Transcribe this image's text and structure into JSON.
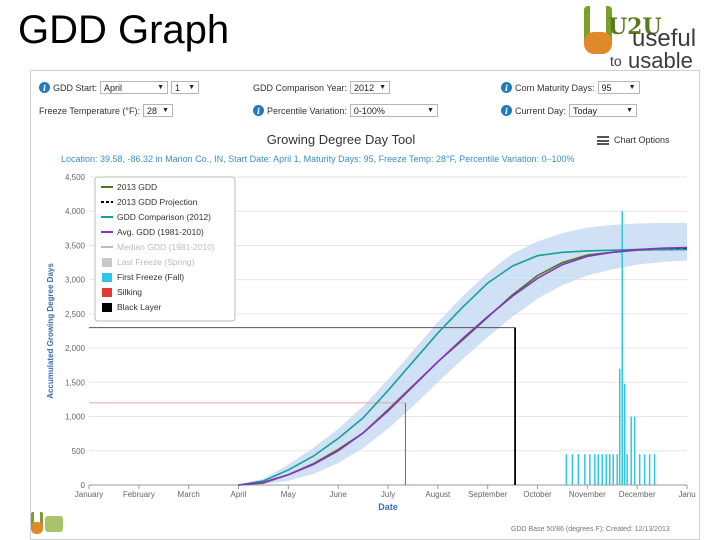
{
  "slide": {
    "title": "GDD Graph"
  },
  "logo": {
    "useful": "useful",
    "to": "to",
    "usable": "usable",
    "mark": "U2U"
  },
  "controls": {
    "gdd_start_label": "GDD Start:",
    "gdd_start_month": "April",
    "gdd_start_day": "1",
    "comparison_label": "GDD Comparison Year:",
    "comparison_value": "2012",
    "maturity_label": "Corn Maturity Days:",
    "maturity_value": "95",
    "freeze_label": "Freeze Temperature (°F):",
    "freeze_value": "28",
    "percentile_label": "Percentile Variation:",
    "percentile_value": "0-100%",
    "current_day_label": "Current Day:",
    "current_day_value": "Today"
  },
  "chart_header": {
    "title": "Growing Degree Day Tool",
    "options_label": "Chart Options",
    "subtitle": "Location: 39.58, -86.32 in Marion Co., IN, Start Date: April 1, Maturity Days: 95, Freeze Temp: 28°F, Percentile Variation: 0–100%"
  },
  "footer": "GDD Base 50/86 (degrees F); Created: 12/13/2013",
  "colors": {
    "gdd_2013": "#4a7a1e",
    "projection": "#000000",
    "comparison": "#14a19a",
    "average": "#8b2fc9",
    "median": "#bbbbbb",
    "last_freeze": "#c8c8c8",
    "first_freeze": "#2ec6e6",
    "silking": "#e53935",
    "black_layer": "#000000",
    "band": "#c5daf3",
    "axis_label": "#3b6fb6"
  },
  "chart_data": {
    "type": "line",
    "xlabel": "Date",
    "ylabel": "Accumulated Growing Degree Days",
    "ylim": [
      0,
      4500
    ],
    "yticks": [
      0,
      500,
      1000,
      1500,
      2000,
      2500,
      3000,
      3500,
      4000,
      4500
    ],
    "ytick_labels": [
      "0",
      "500",
      "1,000",
      "1,500",
      "2,000",
      "2,500",
      "3,000",
      "3,500",
      "4,000",
      "4,500"
    ],
    "xlim": [
      0,
      12
    ],
    "months": [
      "January",
      "February",
      "March",
      "April",
      "May",
      "June",
      "July",
      "August",
      "September",
      "October",
      "November",
      "December",
      "Janu"
    ],
    "legend": [
      {
        "key": "gdd_2013",
        "label": "2013 GDD",
        "kind": "line"
      },
      {
        "key": "projection",
        "label": "2013 GDD Projection",
        "kind": "dash"
      },
      {
        "key": "comparison",
        "label": "GDD Comparison (2012)",
        "kind": "line"
      },
      {
        "key": "average",
        "label": "Avg. GDD (1981-2010)",
        "kind": "line"
      },
      {
        "key": "median",
        "label": "Median GDD (1981-2010)",
        "kind": "line"
      },
      {
        "key": "last_freeze",
        "label": "Last Freeze (Spring)",
        "kind": "box"
      },
      {
        "key": "first_freeze",
        "label": "First Freeze (Fall)",
        "kind": "box"
      },
      {
        "key": "silking",
        "label": "Silking",
        "kind": "box"
      },
      {
        "key": "black_layer",
        "label": "Black Layer",
        "kind": "box"
      }
    ],
    "series": [
      {
        "key": "gdd_2013",
        "x": [
          3,
          3.5,
          4,
          4.5,
          5,
          5.5,
          6,
          6.5,
          7,
          7.5,
          8,
          8.5,
          9,
          9.5,
          10,
          10.5,
          11,
          11.5,
          12
        ],
        "y": [
          0,
          30,
          150,
          310,
          520,
          760,
          1100,
          1450,
          1800,
          2120,
          2450,
          2780,
          3060,
          3250,
          3360,
          3400,
          3430,
          3440,
          3450
        ]
      },
      {
        "key": "projection",
        "x": [
          11.5,
          11.8,
          12
        ],
        "y": [
          3440,
          3445,
          3450
        ]
      },
      {
        "key": "comparison",
        "x": [
          3,
          3.5,
          4,
          4.5,
          5,
          5.5,
          6,
          6.5,
          7,
          7.5,
          8,
          8.5,
          9,
          9.5,
          10,
          10.5,
          11,
          11.5,
          12
        ],
        "y": [
          0,
          60,
          220,
          420,
          680,
          980,
          1380,
          1800,
          2220,
          2600,
          2950,
          3200,
          3350,
          3400,
          3420,
          3430,
          3440,
          3440,
          3440
        ]
      },
      {
        "key": "average",
        "x": [
          3,
          3.5,
          4,
          4.5,
          5,
          5.5,
          6,
          6.5,
          7,
          7.5,
          8,
          8.5,
          9,
          9.5,
          10,
          10.5,
          11,
          11.5,
          12
        ],
        "y": [
          0,
          40,
          150,
          300,
          500,
          760,
          1080,
          1440,
          1800,
          2140,
          2460,
          2760,
          3020,
          3220,
          3340,
          3400,
          3440,
          3460,
          3470
        ]
      }
    ],
    "band": {
      "x": [
        3,
        3.5,
        4,
        4.5,
        5,
        5.5,
        6,
        6.5,
        7,
        7.5,
        8,
        8.5,
        9,
        9.5,
        10,
        10.5,
        11,
        11.5,
        12
      ],
      "lower": [
        0,
        10,
        60,
        160,
        320,
        540,
        820,
        1150,
        1500,
        1840,
        2160,
        2460,
        2720,
        2920,
        3060,
        3150,
        3220,
        3260,
        3280
      ],
      "upper": [
        0,
        90,
        300,
        540,
        820,
        1150,
        1540,
        1960,
        2380,
        2760,
        3100,
        3380,
        3560,
        3680,
        3760,
        3800,
        3820,
        3830,
        3830
      ]
    },
    "markers": [
      {
        "key": "silking",
        "x": 6.35,
        "y": 1200
      },
      {
        "key": "black_layer",
        "x": 8.55,
        "y": 2300
      }
    ],
    "first_freeze_bars": [
      {
        "x": 9.58,
        "y": 450
      },
      {
        "x": 9.7,
        "y": 450
      },
      {
        "x": 9.82,
        "y": 450
      },
      {
        "x": 9.95,
        "y": 450
      },
      {
        "x": 10.05,
        "y": 450
      },
      {
        "x": 10.15,
        "y": 450
      },
      {
        "x": 10.22,
        "y": 450
      },
      {
        "x": 10.3,
        "y": 450
      },
      {
        "x": 10.38,
        "y": 450
      },
      {
        "x": 10.45,
        "y": 450
      },
      {
        "x": 10.52,
        "y": 450
      },
      {
        "x": 10.6,
        "y": 450
      },
      {
        "x": 10.65,
        "y": 1700
      },
      {
        "x": 10.7,
        "y": 4000
      },
      {
        "x": 10.75,
        "y": 1480
      },
      {
        "x": 10.8,
        "y": 450
      },
      {
        "x": 10.88,
        "y": 1000
      },
      {
        "x": 10.95,
        "y": 1000
      },
      {
        "x": 11.05,
        "y": 450
      },
      {
        "x": 11.15,
        "y": 450
      },
      {
        "x": 11.25,
        "y": 450
      },
      {
        "x": 11.35,
        "y": 450
      }
    ]
  }
}
